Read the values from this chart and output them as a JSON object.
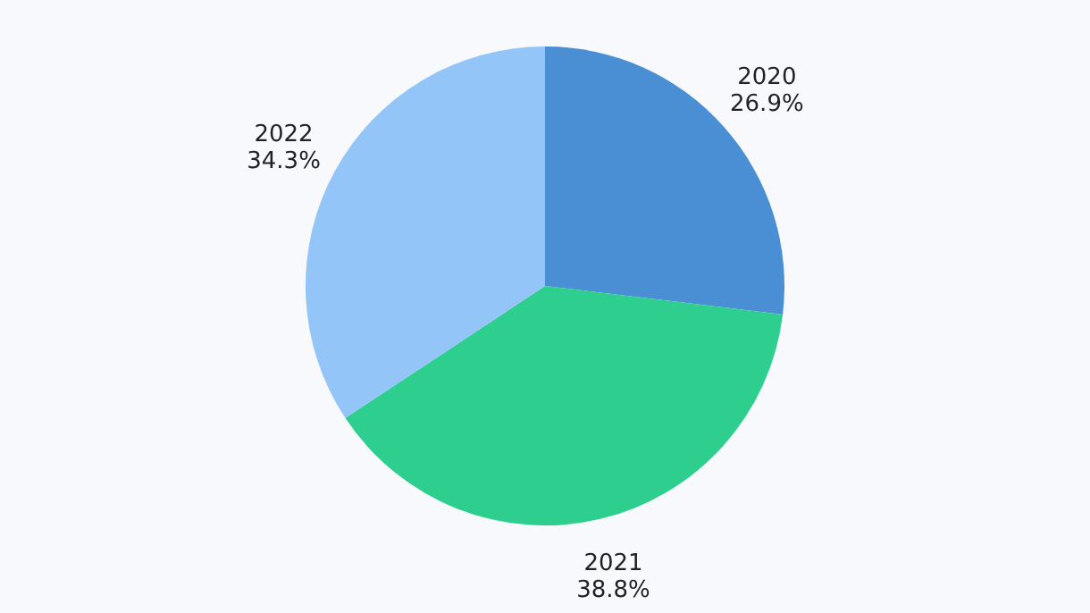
{
  "chart_data": {
    "type": "pie",
    "categories": [
      "2020",
      "2021",
      "2022"
    ],
    "values": [
      26.9,
      38.8,
      34.3
    ],
    "colors": [
      "#4a8fd4",
      "#2ecf8e",
      "#93c5f8"
    ],
    "value_labels": [
      "26.9%",
      "38.8%",
      "34.3%"
    ],
    "legend": false
  }
}
